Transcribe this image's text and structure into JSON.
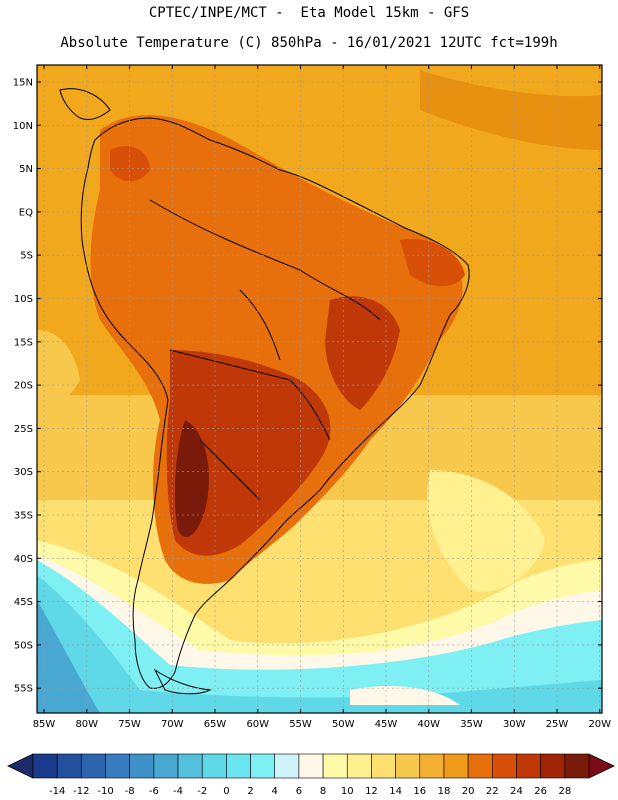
{
  "header": {
    "line1": "CPTEC/INPE/MCT -  Eta Model 15km - GFS",
    "line2": "Absolute Temperature (C) 850hPa - 16/01/2021 12UTC fct=199h"
  },
  "map": {
    "lat_labels": [
      "15N",
      "10N",
      "5N",
      "EQ",
      "5S",
      "10S",
      "15S",
      "20S",
      "25S",
      "30S",
      "35S",
      "40S",
      "45S",
      "50S",
      "55S"
    ],
    "lon_labels": [
      "85W",
      "80W",
      "75W",
      "70W",
      "65W",
      "60W",
      "55W",
      "50W",
      "45W",
      "40W",
      "35W",
      "30W",
      "25W",
      "20W"
    ]
  },
  "colorbar": {
    "tick_labels": [
      "-14",
      "-12",
      "-10",
      "-8",
      "-6",
      "-4",
      "-2",
      "0",
      "2",
      "4",
      "6",
      "8",
      "10",
      "12",
      "14",
      "16",
      "18",
      "20",
      "22",
      "24",
      "26",
      "28"
    ],
    "colors": [
      "#1a3a8a",
      "#23509e",
      "#2c64b0",
      "#3a7cc0",
      "#3f92c8",
      "#48a8d2",
      "#54c0de",
      "#5fd8e8",
      "#6ae4ee",
      "#7ef0f4",
      "#cef4fa",
      "#fff8e8",
      "#fffaa8",
      "#fff090",
      "#fde070",
      "#f8c84c",
      "#f4b030",
      "#f09a1a",
      "#e8700c",
      "#d85008",
      "#c03808",
      "#a02404",
      "#7a1a0a"
    ],
    "under_color": "#1a2a6a",
    "over_color": "#7a0a18"
  }
}
